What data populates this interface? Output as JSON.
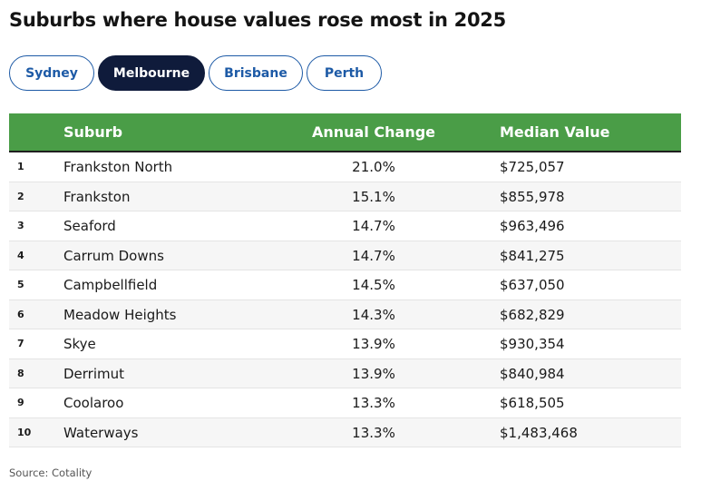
{
  "title": "Suburbs where house values rose most in 2025",
  "tabs": [
    {
      "label": "Sydney",
      "active": false
    },
    {
      "label": "Melbourne",
      "active": true
    },
    {
      "label": "Brisbane",
      "active": false
    },
    {
      "label": "Perth",
      "active": false
    }
  ],
  "table": {
    "headers": {
      "rank": "",
      "suburb": "Suburb",
      "change": "Annual Change",
      "value": "Median Value"
    },
    "rows": [
      {
        "rank": "1",
        "suburb": "Frankston North",
        "change": "21.0%",
        "value": "$725,057"
      },
      {
        "rank": "2",
        "suburb": "Frankston",
        "change": "15.1%",
        "value": "$855,978"
      },
      {
        "rank": "3",
        "suburb": "Seaford",
        "change": "14.7%",
        "value": "$963,496"
      },
      {
        "rank": "4",
        "suburb": "Carrum Downs",
        "change": "14.7%",
        "value": "$841,275"
      },
      {
        "rank": "5",
        "suburb": "Campbellfield",
        "change": "14.5%",
        "value": "$637,050"
      },
      {
        "rank": "6",
        "suburb": "Meadow Heights",
        "change": "14.3%",
        "value": "$682,829"
      },
      {
        "rank": "7",
        "suburb": "Skye",
        "change": "13.9%",
        "value": "$930,354"
      },
      {
        "rank": "8",
        "suburb": "Derrimut",
        "change": "13.9%",
        "value": "$840,984"
      },
      {
        "rank": "9",
        "suburb": "Coolaroo",
        "change": "13.3%",
        "value": "$618,505"
      },
      {
        "rank": "10",
        "suburb": "Waterways",
        "change": "13.3%",
        "value": "$1,483,468"
      }
    ]
  },
  "source": "Source: Cotality",
  "colors": {
    "header_green": "#4a9d47",
    "active_tab": "#0f1b3b",
    "tab_blue": "#1d5aa6"
  }
}
